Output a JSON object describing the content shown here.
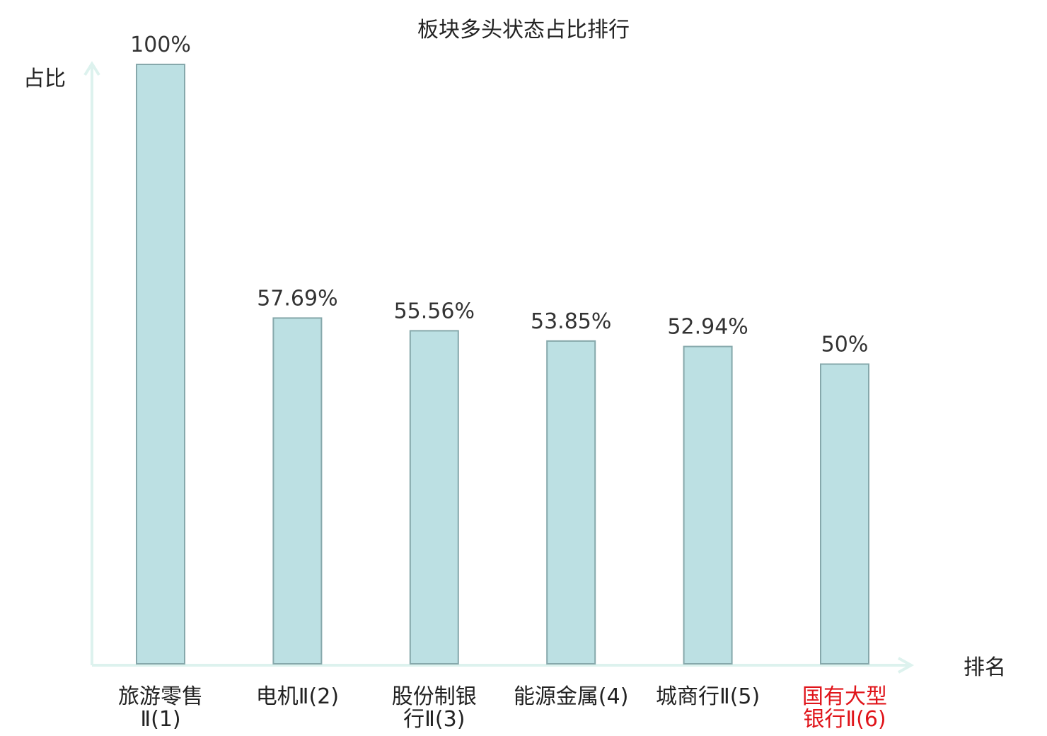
{
  "chart_data": {
    "type": "bar",
    "title": "板块多头状态占比排行",
    "xlabel": "排名",
    "ylabel": "占比",
    "categories": [
      [
        "旅游零售",
        "Ⅱ(1)"
      ],
      [
        "电机Ⅱ(2)"
      ],
      [
        "股份制银",
        "行Ⅱ(3)"
      ],
      [
        "能源金属(4)"
      ],
      [
        "城商行Ⅱ(5)"
      ],
      [
        "国有大型",
        "银行Ⅱ(6)"
      ]
    ],
    "values": [
      100,
      57.69,
      55.56,
      53.85,
      52.94,
      50
    ],
    "value_labels": [
      "100%",
      "57.69%",
      "55.56%",
      "53.85%",
      "52.94%",
      "50%"
    ],
    "ylim": [
      0,
      100
    ],
    "grid": false,
    "highlight_category_index": 5,
    "colors": {
      "bar_fill": "#bce0e3",
      "bar_stroke": "#86a8ab",
      "axis": "#ddf2ee",
      "highlight_text": "#e0141a",
      "text": "#222222"
    }
  }
}
